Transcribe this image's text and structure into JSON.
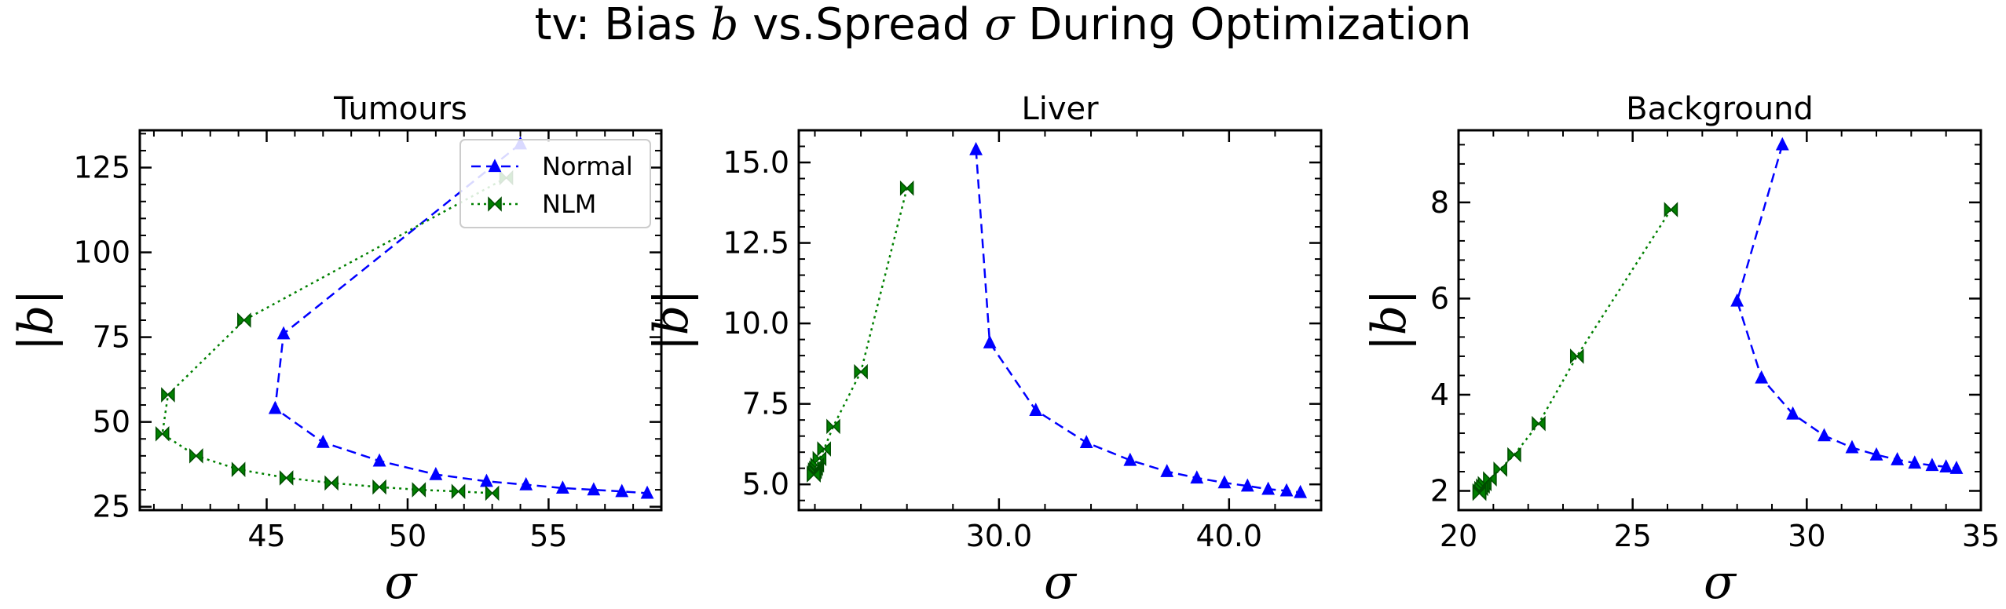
{
  "figure": {
    "title_prefix": "tv: Bias ",
    "title_var": "b",
    "title_mid": " vs.Spread ",
    "title_var2": "σ",
    "title_suffix": " During Optimization"
  },
  "legend": {
    "placement": "top-right of first panel",
    "entries": [
      {
        "name": "Normal",
        "color": "#0000ff",
        "linestyle": "dashed",
        "marker": "triangle-up"
      },
      {
        "name": "NLM",
        "color": "#008000",
        "linestyle": "dotted",
        "marker": "bowtie"
      }
    ]
  },
  "chart_data": [
    {
      "type": "line",
      "title": "Tumours",
      "xlabel": "σ",
      "ylabel": "|b|",
      "xlim": [
        40.5,
        59.0
      ],
      "ylim": [
        24,
        136
      ],
      "xticks": [
        45,
        50,
        55
      ],
      "yticks": [
        25,
        50,
        75,
        100,
        125
      ],
      "series": [
        {
          "name": "Normal",
          "x": [
            54.0,
            45.6,
            45.3,
            47.0,
            49.0,
            51.0,
            52.8,
            54.2,
            55.5,
            56.6,
            57.6,
            58.5
          ],
          "y": [
            132,
            76,
            54,
            44,
            38.5,
            34.5,
            32.5,
            31.5,
            30.5,
            30,
            29.5,
            29
          ]
        },
        {
          "name": "NLM",
          "x": [
            53.5,
            44.2,
            41.5,
            41.3,
            42.5,
            44.0,
            45.7,
            47.3,
            49.0,
            50.4,
            51.8,
            53.0
          ],
          "y": [
            122,
            80,
            58,
            46.5,
            40,
            36,
            33.5,
            32,
            30.8,
            30,
            29.5,
            29
          ]
        }
      ]
    },
    {
      "type": "line",
      "title": "Liver",
      "xlabel": "σ",
      "ylabel": "|b|",
      "xlim": [
        21.3,
        44.0
      ],
      "ylim": [
        4.2,
        16.0
      ],
      "xticks": [
        30,
        40
      ],
      "yticks": [
        5.0,
        7.5,
        10.0,
        12.5,
        15.0
      ],
      "tick_format": "one-decimal",
      "series": [
        {
          "name": "Normal",
          "x": [
            29.0,
            29.6,
            31.6,
            33.8,
            35.7,
            37.3,
            38.6,
            39.8,
            40.8,
            41.7,
            42.5,
            43.1
          ],
          "y": [
            15.4,
            9.4,
            7.3,
            6.3,
            5.75,
            5.4,
            5.2,
            5.05,
            4.95,
            4.85,
            4.8,
            4.75
          ]
        },
        {
          "name": "NLM",
          "x": [
            26.0,
            24.0,
            22.8,
            22.4,
            22.2,
            22.1,
            22.05,
            22.0,
            22.0,
            21.95,
            21.95,
            21.95
          ],
          "y": [
            14.2,
            8.5,
            6.8,
            6.1,
            5.8,
            5.6,
            5.5,
            5.45,
            5.4,
            5.35,
            5.3,
            5.3
          ]
        }
      ]
    },
    {
      "type": "line",
      "title": "Background",
      "xlabel": "σ",
      "ylabel": "|b|",
      "xlim": [
        20.0,
        35.0
      ],
      "ylim": [
        1.6,
        9.5
      ],
      "xticks": [
        20,
        25,
        30,
        35
      ],
      "yticks": [
        2,
        4,
        6,
        8
      ],
      "series": [
        {
          "name": "Normal",
          "x": [
            29.3,
            28.0,
            28.7,
            29.6,
            30.5,
            31.3,
            32.0,
            32.6,
            33.1,
            33.6,
            34.0,
            34.3
          ],
          "y": [
            9.2,
            5.95,
            4.35,
            3.6,
            3.15,
            2.9,
            2.75,
            2.65,
            2.58,
            2.53,
            2.5,
            2.47
          ]
        },
        {
          "name": "NLM",
          "x": [
            26.1,
            23.4,
            22.3,
            21.6,
            21.2,
            20.9,
            20.75,
            20.7,
            20.65,
            20.6,
            20.6,
            20.6
          ],
          "y": [
            7.85,
            4.8,
            3.4,
            2.75,
            2.45,
            2.25,
            2.15,
            2.1,
            2.05,
            2.0,
            1.98,
            1.95
          ]
        }
      ]
    }
  ]
}
